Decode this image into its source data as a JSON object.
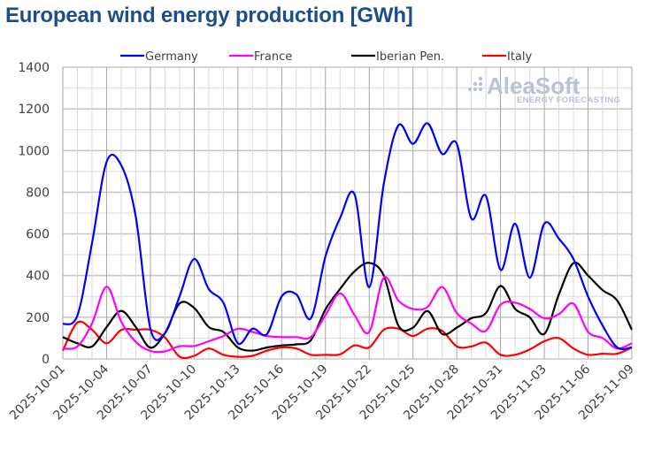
{
  "chart_data": {
    "type": "line",
    "title": "European wind energy production [GWh]",
    "xlabel": "",
    "ylabel": "",
    "ylim": [
      0,
      1400
    ],
    "y_ticks": [
      0,
      200,
      400,
      600,
      800,
      1000,
      1200,
      1400
    ],
    "y_tick_labels": [
      "0",
      "200",
      "400",
      "600",
      "800",
      "1000",
      "1200",
      "1400"
    ],
    "grid": true,
    "legend_position": "top",
    "watermark": {
      "brand": "AleaSoft",
      "tagline": "ENERGY FORECASTING"
    },
    "x": [
      "2025-10-01",
      "2025-10-02",
      "2025-10-03",
      "2025-10-04",
      "2025-10-05",
      "2025-10-06",
      "2025-10-07",
      "2025-10-08",
      "2025-10-09",
      "2025-10-10",
      "2025-10-11",
      "2025-10-12",
      "2025-10-13",
      "2025-10-14",
      "2025-10-15",
      "2025-10-16",
      "2025-10-17",
      "2025-10-18",
      "2025-10-19",
      "2025-10-20",
      "2025-10-21",
      "2025-10-22",
      "2025-10-23",
      "2025-10-24",
      "2025-10-25",
      "2025-10-26",
      "2025-10-27",
      "2025-10-28",
      "2025-10-29",
      "2025-10-30",
      "2025-10-31",
      "2025-11-01",
      "2025-11-02",
      "2025-11-03",
      "2025-11-04",
      "2025-11-05",
      "2025-11-06",
      "2025-11-07",
      "2025-11-08",
      "2025-11-09"
    ],
    "x_tick_labels": [
      "2025-10-01",
      "2025-10-04",
      "2025-10-07",
      "2025-10-10",
      "2025-10-13",
      "2025-10-16",
      "2025-10-19",
      "2025-10-22",
      "2025-10-25",
      "2025-10-28",
      "2025-10-31",
      "2025-11-03",
      "2025-11-06",
      "2025-11-09"
    ],
    "series": [
      {
        "name": "Germany",
        "color": "#0000ff",
        "values": [
          167,
          209,
          556,
          946,
          930,
          683,
          146,
          124,
          300,
          480,
          335,
          270,
          75,
          145,
          120,
          300,
          310,
          195,
          492,
          676,
          789,
          344,
          840,
          1121,
          1032,
          1131,
          984,
          1032,
          675,
          782,
          428,
          649,
          390,
          649,
          577,
          479,
          300,
          160,
          55,
          55
        ]
      },
      {
        "name": "France",
        "color": "#ff00ff",
        "values": [
          50,
          60,
          170,
          347,
          180,
          82,
          38,
          36,
          61,
          62,
          85,
          110,
          145,
          130,
          110,
          105,
          105,
          105,
          210,
          315,
          210,
          130,
          390,
          280,
          240,
          250,
          345,
          220,
          170,
          135,
          260,
          270,
          240,
          195,
          215,
          265,
          130,
          100,
          50,
          75
        ]
      },
      {
        "name": "Iberian Pen.",
        "color": "#000000",
        "values": [
          105,
          75,
          60,
          153,
          231,
          153,
          54,
          124,
          266,
          245,
          153,
          130,
          55,
          40,
          55,
          65,
          70,
          90,
          238,
          336,
          421,
          461,
          400,
          160,
          150,
          230,
          120,
          150,
          195,
          220,
          350,
          240,
          200,
          120,
          310,
          460,
          400,
          330,
          280,
          140
        ]
      },
      {
        "name": "Italy",
        "color": "#ff0000",
        "values": [
          40,
          175,
          140,
          75,
          139,
          140,
          140,
          103,
          11,
          15,
          50,
          20,
          10,
          15,
          40,
          55,
          50,
          20,
          20,
          22,
          65,
          55,
          140,
          145,
          110,
          145,
          135,
          60,
          60,
          78,
          20,
          20,
          45,
          85,
          100,
          50,
          20,
          25,
          25,
          55
        ]
      }
    ]
  }
}
